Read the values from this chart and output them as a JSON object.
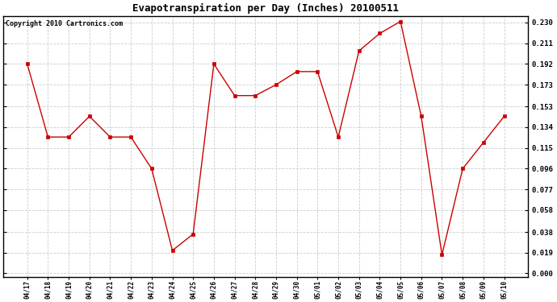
{
  "title": "Evapotranspiration per Day (Inches) 20100511",
  "copyright": "Copyright 2010 Cartronics.com",
  "x_labels": [
    "04/17",
    "04/18",
    "04/19",
    "04/20",
    "04/21",
    "04/22",
    "04/23",
    "04/24",
    "04/25",
    "04/26",
    "04/27",
    "04/28",
    "04/29",
    "04/30",
    "05/01",
    "05/02",
    "05/03",
    "05/04",
    "05/05",
    "05/06",
    "05/07",
    "05/08",
    "05/09",
    "05/10"
  ],
  "y_values": [
    0.192,
    0.125,
    0.125,
    0.144,
    0.125,
    0.125,
    0.096,
    0.021,
    0.036,
    0.192,
    0.163,
    0.163,
    0.173,
    0.185,
    0.185,
    0.125,
    0.204,
    0.22,
    0.231,
    0.144,
    0.017,
    0.096,
    0.12,
    0.144
  ],
  "line_color": "#cc0000",
  "marker": "s",
  "marker_size": 2.5,
  "ylim_min": -0.003,
  "ylim_max": 0.236,
  "yticks": [
    0.0,
    0.019,
    0.038,
    0.058,
    0.077,
    0.096,
    0.115,
    0.134,
    0.153,
    0.173,
    0.192,
    0.211,
    0.23
  ],
  "grid_color": "#cccccc",
  "bg_color": "#ffffff",
  "title_fontsize": 9,
  "copyright_fontsize": 6,
  "tick_fontsize": 6.5,
  "xtick_fontsize": 5.5
}
